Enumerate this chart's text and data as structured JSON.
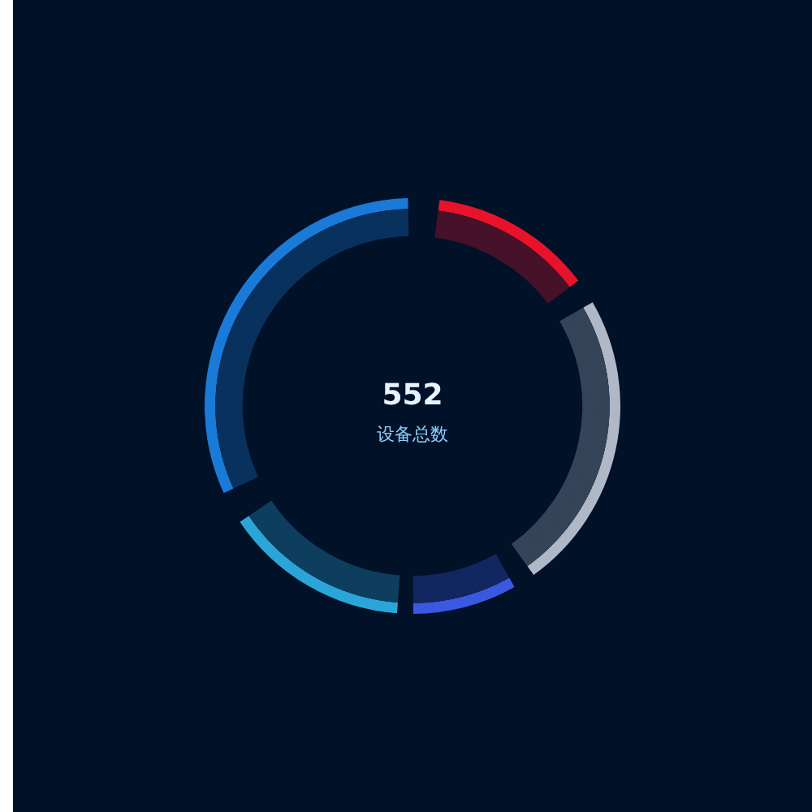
{
  "chart_data": {
    "type": "donut",
    "categories": [
      null,
      null,
      null,
      null,
      null
    ],
    "values": [
      14,
      26,
      9,
      16,
      35
    ],
    "colors": [
      "#e8132a",
      "#b0b8c8",
      "#3a58e0",
      "#2aa5d8",
      "#1a7ad8"
    ],
    "annotations": [
      "552",
      "设备总数"
    ],
    "legend": false
  }
}
